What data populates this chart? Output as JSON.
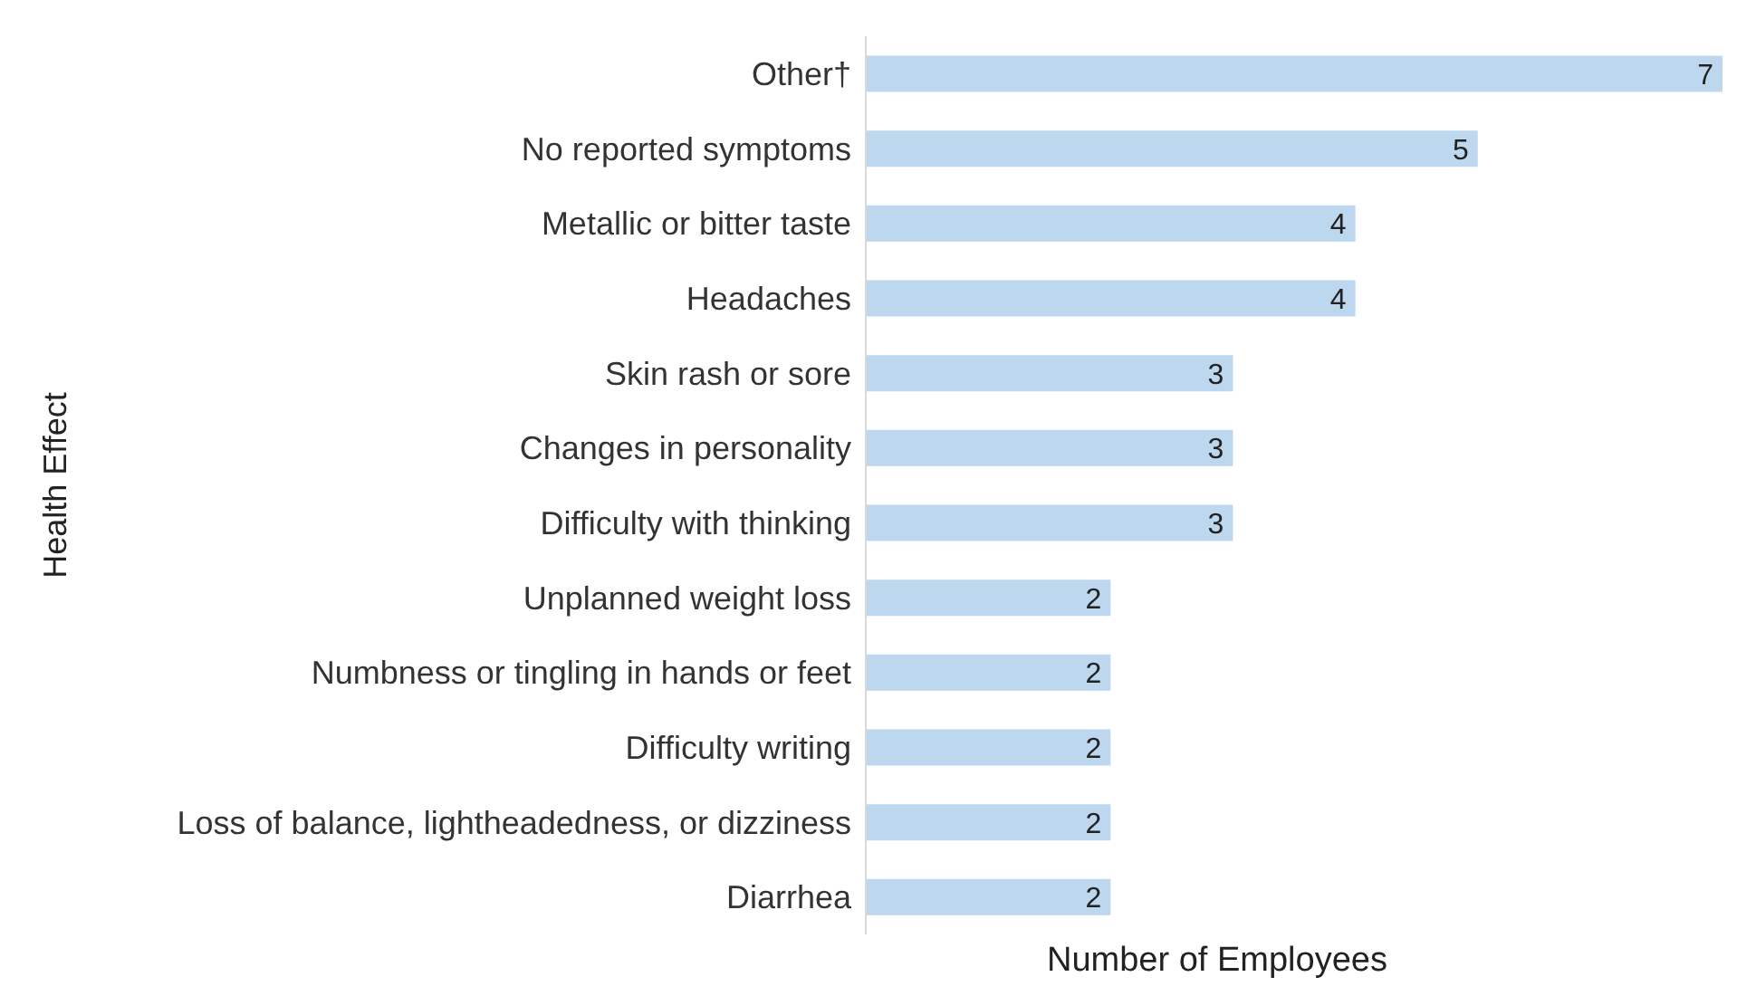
{
  "chart_data": {
    "type": "bar",
    "orientation": "horizontal",
    "xlabel": "Number of Employees",
    "ylabel": "Health Effect",
    "categories": [
      "Other†",
      "No reported symptoms",
      "Metallic or bitter taste",
      "Headaches",
      "Skin rash or sore",
      "Changes in personality",
      "Difficulty with thinking",
      "Unplanned weight loss",
      "Numbness or tingling in hands or feet",
      "Difficulty writing",
      "Loss of balance, lightheadedness, or dizziness",
      "Diarrhea"
    ],
    "values": [
      7,
      5,
      4,
      4,
      3,
      3,
      3,
      2,
      2,
      2,
      2,
      2
    ],
    "color": "#bdd7ee",
    "data_labels": true,
    "grid": false,
    "legend": false
  }
}
